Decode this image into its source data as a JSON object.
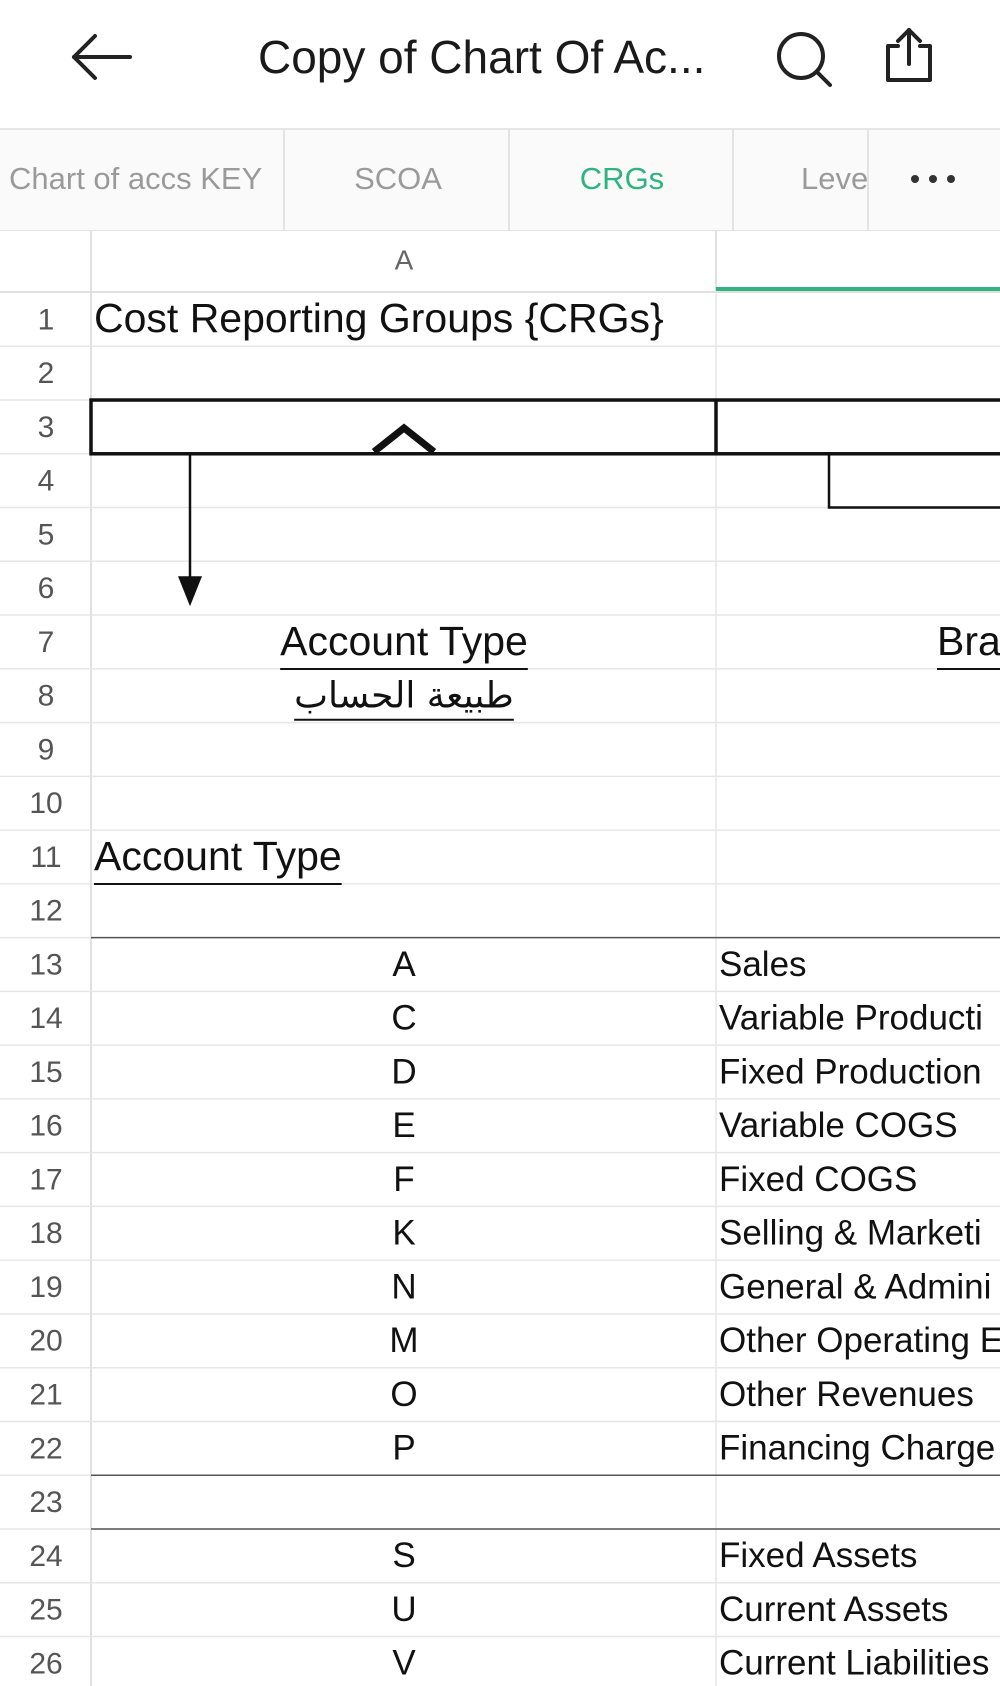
{
  "header": {
    "title": "Copy of Chart Of Ac...",
    "tabs": [
      "Chart of accs KEY",
      "SCOA",
      "CRGs",
      "Leve"
    ]
  },
  "sheet": {
    "column_header": "A",
    "rows": [
      {
        "number": "1",
        "a": "Cost Reporting Groups {CRGs}",
        "a_style": "title"
      },
      {
        "number": "2"
      },
      {
        "number": "3"
      },
      {
        "number": "4"
      },
      {
        "number": "5"
      },
      {
        "number": "6"
      },
      {
        "number": "7",
        "a": "Account Type",
        "a_style": "center-underline",
        "b": "Bra",
        "b_style": "right-underline"
      },
      {
        "number": "8",
        "a": "طبيعة الحساب",
        "a_style": "center-underline-arabic"
      },
      {
        "number": "9"
      },
      {
        "number": "10"
      },
      {
        "number": "11",
        "a": "Account Type",
        "a_style": "left-underline"
      },
      {
        "number": "12"
      },
      {
        "number": "13",
        "a": "A",
        "a_style": "center",
        "b": "Sales",
        "b_style": "left"
      },
      {
        "number": "14",
        "a": "C",
        "a_style": "center",
        "b": "Variable Producti",
        "b_style": "left"
      },
      {
        "number": "15",
        "a": "D",
        "a_style": "center",
        "b": "Fixed Production",
        "b_style": "left"
      },
      {
        "number": "16",
        "a": "E",
        "a_style": "center",
        "b": "Variable COGS",
        "b_style": "left"
      },
      {
        "number": "17",
        "a": "F",
        "a_style": "center",
        "b": "Fixed COGS",
        "b_style": "left"
      },
      {
        "number": "18",
        "a": "K",
        "a_style": "center",
        "b": "Selling & Marketi",
        "b_style": "left"
      },
      {
        "number": "19",
        "a": "N",
        "a_style": "center",
        "b": "General & Admini",
        "b_style": "left"
      },
      {
        "number": "20",
        "a": "M",
        "a_style": "center",
        "b": "Other Operating E",
        "b_style": "left"
      },
      {
        "number": "21",
        "a": "O",
        "a_style": "center",
        "b": "Other Revenues",
        "b_style": "left"
      },
      {
        "number": "22",
        "a": "P",
        "a_style": "center",
        "b": "Financing Charge",
        "b_style": "left"
      },
      {
        "number": "23"
      },
      {
        "number": "24",
        "a": "S",
        "a_style": "center",
        "b": "Fixed Assets",
        "b_style": "left"
      },
      {
        "number": "25",
        "a": "U",
        "a_style": "center",
        "b": "Current Assets",
        "b_style": "left"
      },
      {
        "number": "26",
        "a": "V",
        "a_style": "center",
        "b": "Current Liabilities",
        "b_style": "left"
      }
    ]
  }
}
